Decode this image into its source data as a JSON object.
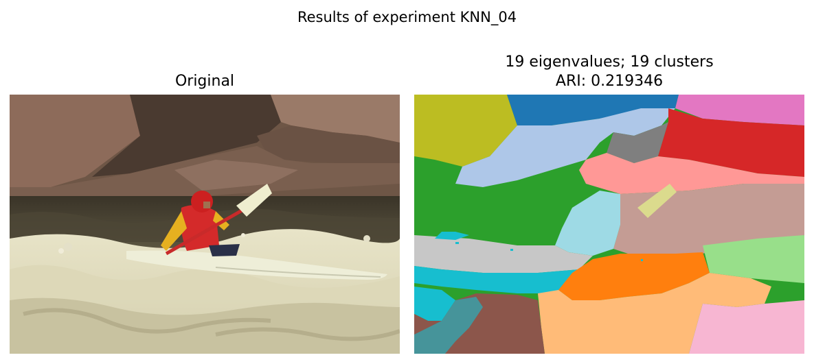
{
  "figure": {
    "suptitle": "Results of experiment KNN_04"
  },
  "panels": [
    {
      "title": "Original",
      "image": "photo of a kayaker in red helmet and red life vest paddling through white water rapids beside large rocks"
    },
    {
      "title_line1": "19 eigenvalues; 19 clusters",
      "title_line2": "ARI: 0.219346",
      "image": "segmentation map with 19 colored cluster regions"
    }
  ],
  "colors": {
    "tab_blue": "#1f77b4",
    "tab_orange": "#ff7f0e",
    "tab_green": "#2ca02c",
    "tab_red": "#d62728",
    "tab_brown": "#8c564b",
    "tab_pink": "#e377c2",
    "tab_gray": "#7f7f7f",
    "tab_olive": "#bcbd22",
    "tab_cyan": "#17becf",
    "light_blue": "#aec7e8",
    "light_orange": "#ffbb78",
    "light_green": "#98df8a",
    "light_red": "#ff9896",
    "light_brown": "#c49c94",
    "light_pink": "#f7b6d2",
    "light_gray": "#c7c7c7",
    "light_olive": "#dbdb8d",
    "light_cyan": "#9edae5"
  }
}
